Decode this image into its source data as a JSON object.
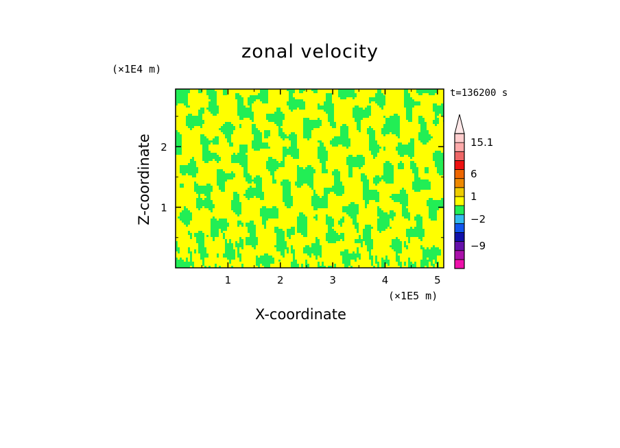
{
  "chart_data": {
    "type": "heatmap",
    "title": "zonal velocity",
    "xlabel": "X-coordinate",
    "ylabel": "Z-coordinate",
    "x_multiplier": "(×1E5 m)",
    "z_multiplier": "(×1E4 m)",
    "time_label": "t=136200 s",
    "xlim": [
      0,
      5.12
    ],
    "zlim": [
      0,
      2.95
    ],
    "x_ticks": [
      "1",
      "2",
      "3",
      "4",
      "5"
    ],
    "x_tick_values": [
      1,
      2,
      3,
      4,
      5
    ],
    "z_ticks": [
      "1",
      "2"
    ],
    "z_tick_values": [
      1,
      2
    ],
    "field_colors": {
      "positive": "#ffff00",
      "negative": "#22ee55"
    },
    "colorbar": {
      "colors": [
        "#ee11aa",
        "#aa11aa",
        "#6611aa",
        "#1111aa",
        "#1155ee",
        "#33bbee",
        "#22ee55",
        "#ffff00",
        "#eecc00",
        "#ee8800",
        "#ee6600",
        "#ee1111",
        "#ee6666",
        "#ffaaaa",
        "#ffcccc"
      ],
      "triangle_color": "#ffe8e8",
      "labels": [
        {
          "text": "15.1",
          "index": 14
        },
        {
          "text": "6",
          "index": 10.5
        },
        {
          "text": "1",
          "index": 8
        },
        {
          "text": "−2",
          "index": 5.5
        },
        {
          "text": "−9",
          "index": 2.5
        }
      ]
    }
  }
}
